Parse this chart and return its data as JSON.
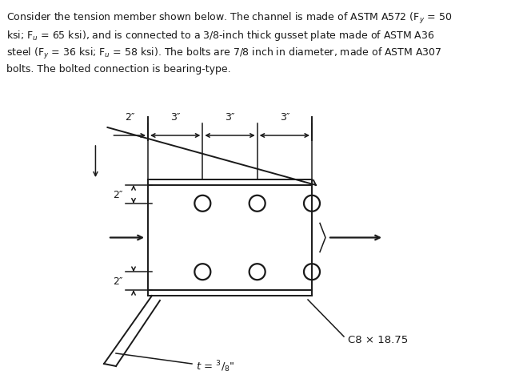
{
  "background_color": "#ffffff",
  "line_color": "#1a1a1a",
  "paragraph_lines": [
    "Consider the tension member shown below. The channel is made of ASTM A572 (F$_{y}$ = 50",
    "ksi; F$_{u}$ = 65 ksi), and is connected to a 3/8-inch thick gusset plate made of ASTM A36",
    "steel (F$_{y}$ = 36 ksi; F$_{u}$ = 58 ksi). The bolts are 7/8 inch in diameter, made of ASTM A307",
    "bolts. The bolted connection is bearing-type."
  ],
  "channel_label": "C8 × 18.75",
  "thickness_label": "t = $^{3}/_{8}$\""
}
